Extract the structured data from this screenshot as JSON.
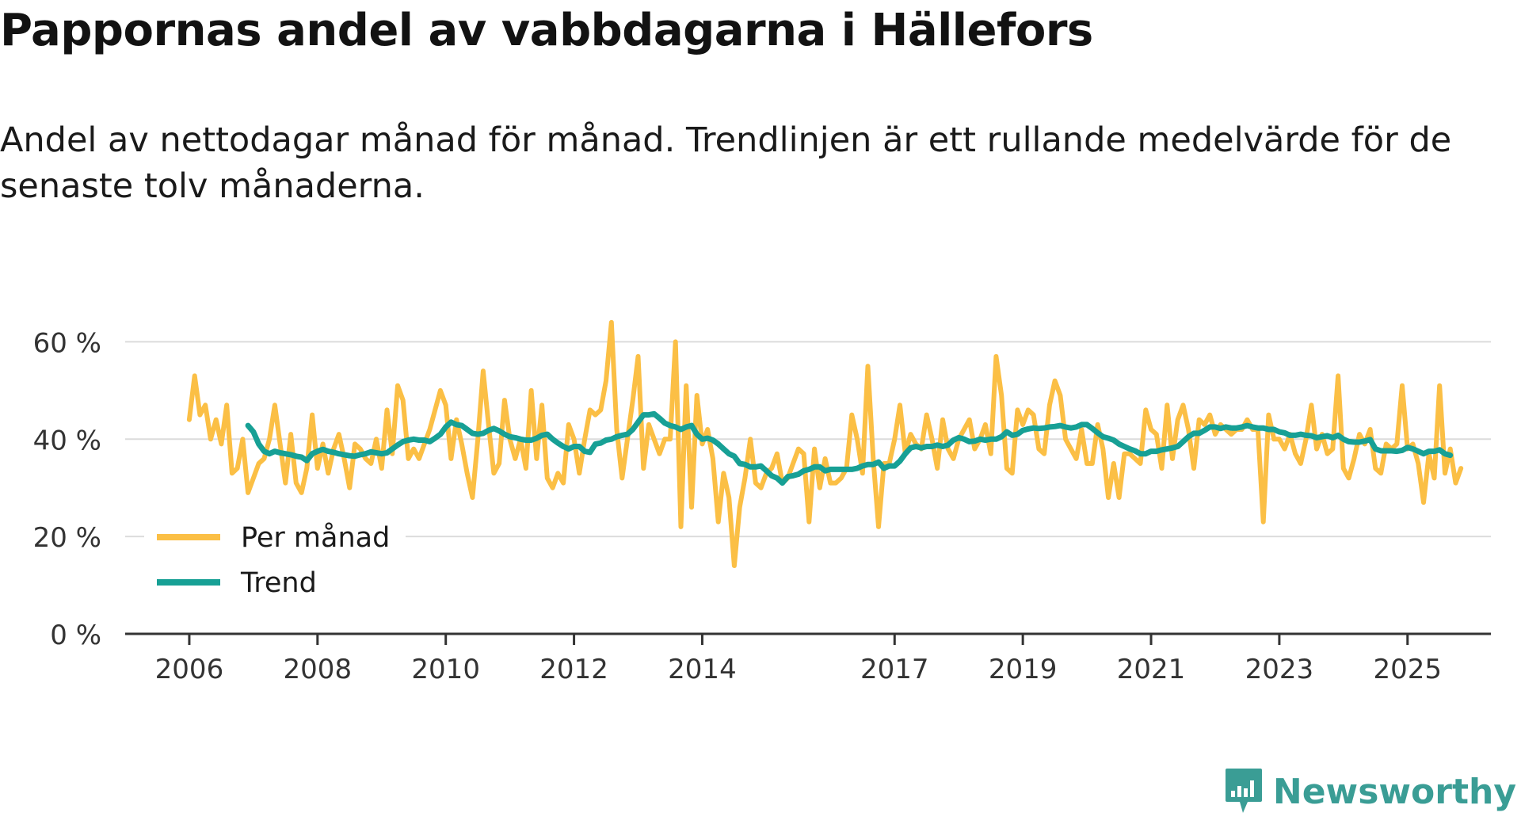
{
  "title": "Pappornas andel av vabbdagarna i Hällefors",
  "subtitle": "Andel av nettodagar månad för månad. Trendlinjen är ett rullande medelvärde för de senaste tolv månaderna.",
  "brand": "Newsworthy",
  "colors": {
    "monthly": "#fbbf45",
    "trend": "#17a095",
    "grid": "#dcdcdc",
    "axis": "#333333",
    "brand": "#3a9d95"
  },
  "chart_data": {
    "type": "line",
    "title": "Pappornas andel av vabbdagarna i Hällefors",
    "xlabel": "",
    "ylabel": "",
    "ylim": [
      0,
      70
    ],
    "xlim": [
      2005.0,
      2026.3
    ],
    "y_ticks": [
      0,
      20,
      40,
      60
    ],
    "y_tick_labels": [
      "0 %",
      "20 %",
      "40 %",
      "60 %"
    ],
    "x_ticks": [
      2006,
      2008,
      2010,
      2012,
      2014,
      2017,
      2019,
      2021,
      2023,
      2025
    ],
    "x_tick_labels": [
      "2006",
      "2008",
      "2010",
      "2012",
      "2014",
      "2017",
      "2019",
      "2021",
      "2023",
      "2025"
    ],
    "legend_position": "bottom-left",
    "series": [
      {
        "name": "Per månad",
        "x_start": 2006.0,
        "step": 0.0833333,
        "values": [
          44,
          53,
          45,
          47,
          40,
          44,
          39,
          47,
          33,
          34,
          40,
          29,
          32,
          35,
          36,
          40,
          47,
          39,
          31,
          41,
          31,
          29,
          34,
          45,
          34,
          39,
          33,
          38,
          41,
          36,
          30,
          39,
          38,
          36,
          35,
          40,
          34,
          46,
          37,
          51,
          48,
          36,
          38,
          36,
          39,
          42,
          46,
          50,
          47,
          36,
          44,
          39,
          33,
          28,
          40,
          54,
          43,
          33,
          35,
          48,
          40,
          36,
          40,
          34,
          50,
          36,
          47,
          32,
          30,
          33,
          31,
          43,
          40,
          33,
          40,
          46,
          45,
          46,
          52,
          64,
          42,
          32,
          40,
          48,
          57,
          34,
          43,
          40,
          37,
          40,
          40,
          60,
          22,
          51,
          26,
          49,
          39,
          42,
          36,
          23,
          33,
          28,
          14,
          26,
          32,
          40,
          31,
          30,
          33,
          34,
          37,
          31,
          32,
          35,
          38,
          37,
          23,
          38,
          30,
          36,
          31,
          31,
          32,
          34,
          45,
          40,
          33,
          55,
          36,
          22,
          35,
          35,
          40,
          47,
          37,
          41,
          39,
          38,
          45,
          40,
          34,
          44,
          38,
          36,
          40,
          42,
          44,
          38,
          40,
          43,
          37,
          57,
          49,
          34,
          33,
          46,
          43,
          46,
          45,
          38,
          37,
          47,
          52,
          49,
          40,
          38,
          36,
          42,
          35,
          35,
          43,
          38,
          28,
          35,
          28,
          37,
          37,
          36,
          35,
          46,
          42,
          41,
          34,
          47,
          36,
          44,
          47,
          42,
          34,
          44,
          43,
          45,
          41,
          43,
          42,
          41,
          42,
          42,
          44,
          42,
          42,
          23,
          45,
          40,
          40,
          38,
          41,
          37,
          35,
          40,
          47,
          38,
          41,
          37,
          38,
          53,
          34,
          32,
          36,
          41,
          39,
          42,
          34,
          33,
          39,
          38,
          39,
          51,
          38,
          39,
          35,
          27,
          37,
          32,
          51,
          33,
          38,
          31,
          34
        ]
      },
      {
        "name": "Trend",
        "x_start": 2006.9167,
        "step": 0.0833333,
        "values": [
          42.8,
          41.5,
          39,
          37.5,
          37,
          37.5,
          37.2,
          37,
          36.8,
          36.5,
          36.3,
          35.6,
          37,
          37.5,
          37.9,
          37.5,
          37.3,
          37,
          36.8,
          36.6,
          36.5,
          36.8,
          37,
          37.4,
          37.2,
          37,
          37.2,
          38,
          38.8,
          39.5,
          39.8,
          40,
          39.8,
          39.8,
          39.5,
          40.2,
          41,
          42.5,
          43.5,
          43,
          42.8,
          42,
          41.2,
          41,
          41.2,
          41.8,
          42.2,
          41.7,
          41,
          40.5,
          40.3,
          40,
          39.8,
          39.8,
          40.2,
          40.8,
          41,
          40,
          39.2,
          38.5,
          38,
          38.5,
          38.5,
          37.5,
          37.3,
          39,
          39.2,
          39.8,
          40,
          40.5,
          40.8,
          41,
          42,
          43.5,
          45,
          45,
          45.2,
          44.3,
          43.3,
          42.8,
          42.5,
          42,
          42.5,
          42.8,
          41,
          40,
          40.2,
          39.8,
          39,
          38,
          37,
          36.5,
          35,
          34.8,
          34.3,
          34.3,
          34.5,
          33.5,
          32.5,
          32,
          31,
          32.3,
          32.5,
          32.8,
          33.5,
          33.8,
          34.3,
          34.3,
          33.5,
          33.8,
          33.8,
          33.8,
          33.8,
          33.8,
          34,
          34.5,
          34.8,
          34.8,
          35.3,
          34,
          34.5,
          34.5,
          35.5,
          37,
          38.2,
          38.5,
          38.2,
          38.5,
          38.5,
          38.8,
          38.5,
          38.8,
          39.8,
          40.3,
          40,
          39.5,
          39.6,
          40,
          39.8,
          40,
          40,
          40.5,
          41.5,
          40.8,
          41,
          41.8,
          42.1,
          42.3,
          42.2,
          42.3,
          42.5,
          42.6,
          42.8,
          42.5,
          42.3,
          42.5,
          43,
          43,
          42.2,
          41.3,
          40.5,
          40.2,
          39.8,
          39,
          38.5,
          38,
          37.6,
          37,
          37,
          37.5,
          37.5,
          37.8,
          38,
          38.2,
          38.5,
          39.5,
          40.5,
          41.2,
          41.2,
          41.8,
          42.5,
          42.5,
          42.2,
          42.5,
          42.3,
          42.3,
          42.5,
          42.8,
          42.5,
          42.3,
          42.3,
          42,
          42,
          41.5,
          41.3,
          40.8,
          40.8,
          41,
          40.8,
          40.7,
          40.3,
          40.5,
          40.7,
          40.3,
          40.8,
          40,
          39.5,
          39.4,
          39.4,
          39.6,
          39.9,
          38,
          37.6,
          37.6,
          37.6,
          37.5,
          37.7,
          38.3,
          38,
          37.5,
          37,
          37.5,
          37.5,
          37.8,
          37,
          36.7
        ]
      }
    ]
  }
}
